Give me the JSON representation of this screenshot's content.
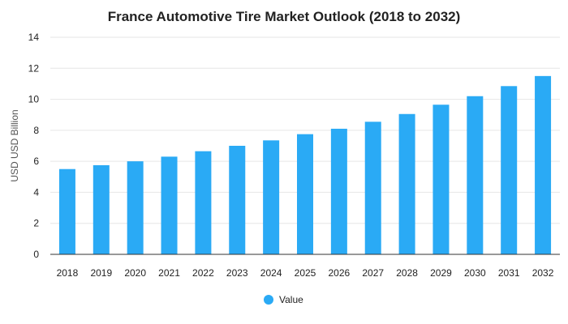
{
  "chart_data": {
    "type": "bar",
    "title": "France Automotive Tire Market Outlook (2018 to 2032)",
    "xlabel": "",
    "ylabel": "USD USD Billion",
    "categories": [
      "2018",
      "2019",
      "2020",
      "2021",
      "2022",
      "2023",
      "2024",
      "2025",
      "2026",
      "2027",
      "2028",
      "2029",
      "2030",
      "2031",
      "2032"
    ],
    "series": [
      {
        "name": "Value",
        "color": "#2aaaf5",
        "values": [
          5.5,
          5.75,
          6.0,
          6.3,
          6.65,
          7.0,
          7.35,
          7.75,
          8.1,
          8.55,
          9.05,
          9.65,
          10.2,
          10.85,
          11.5
        ]
      }
    ],
    "ylim": [
      0,
      14
    ],
    "yticks": [
      0,
      2,
      4,
      6,
      8,
      10,
      12,
      14
    ],
    "grid": true,
    "legend_position": "bottom-center"
  }
}
